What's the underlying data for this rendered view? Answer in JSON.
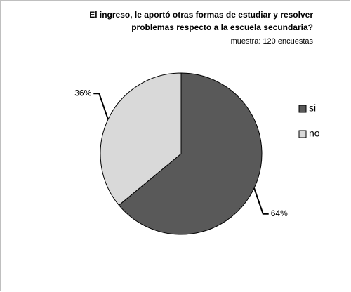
{
  "chart_data": {
    "type": "pie",
    "title": [
      "El ingreso, le aportó otras formas de estudiar y resolver",
      "problemas respecto a la escuela secundaria?"
    ],
    "subtitle": "muestra: 120 encuestas",
    "categories": [
      "si",
      "no"
    ],
    "values": [
      64,
      36
    ],
    "value_labels": [
      "64%",
      "36%"
    ],
    "colors": [
      "#595959",
      "#d9d9d9"
    ],
    "legend": "right"
  }
}
